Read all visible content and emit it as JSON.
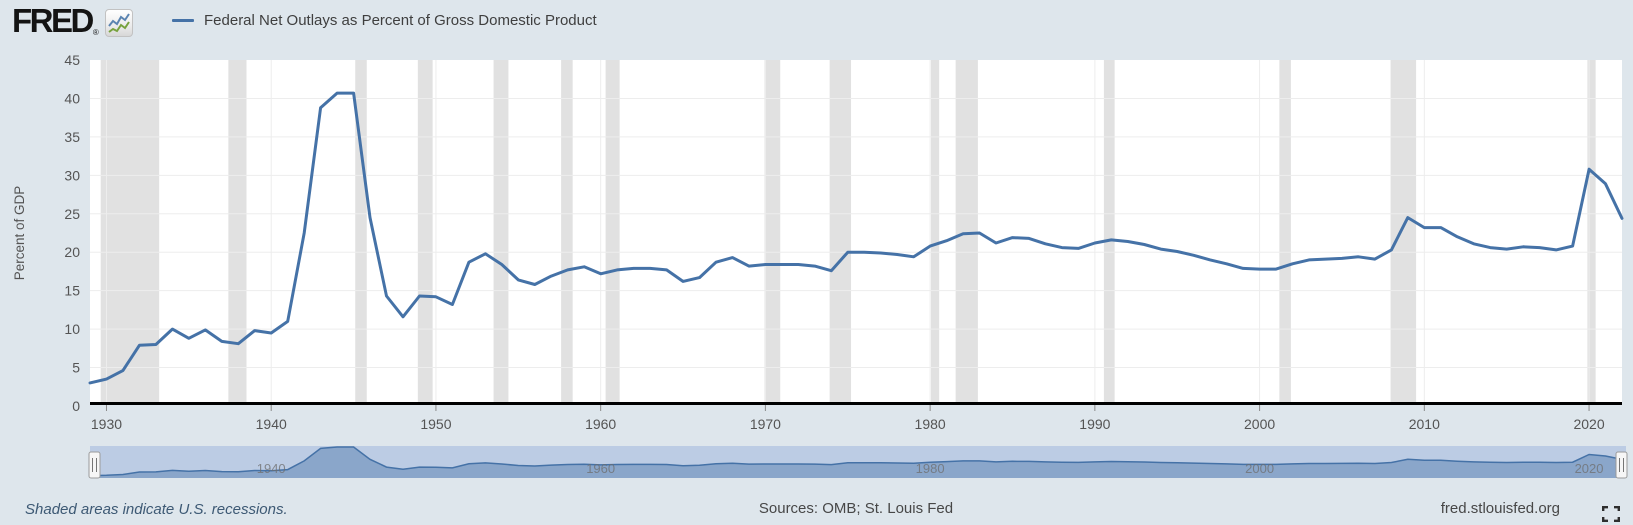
{
  "header": {
    "logo_text": "FRED",
    "registered_mark": "®",
    "legend": {
      "marker_color": "#4572a7",
      "label": "Federal Net Outlays as Percent of Gross Domestic Product"
    }
  },
  "footer": {
    "recession_note": "Shaded areas indicate U.S. recessions.",
    "sources": "Sources: OMB; St. Louis Fed",
    "site_link": "fred.stlouisfed.org"
  },
  "theme": {
    "background": "#dee6ec",
    "plot_background": "#ffffff",
    "gridline_color": "#ededed",
    "axis_line_color": "#000000",
    "tick_label_color": "#545454"
  },
  "chart_data": {
    "type": "line",
    "series_name": "Federal Net Outlays as Percent of Gross Domestic Product",
    "ylabel": "Percent of GDP",
    "ylim": [
      0,
      45
    ],
    "yticks": [
      0,
      5,
      10,
      15,
      20,
      25,
      30,
      35,
      40,
      45
    ],
    "xlim": [
      1929,
      2022
    ],
    "xticks": [
      1930,
      1940,
      1950,
      1960,
      1970,
      1980,
      1990,
      2000,
      2010,
      2020
    ],
    "grid": true,
    "legend_position": "top-left",
    "line_color": "#4572a7",
    "recession_band_color": "#e1e1e1",
    "recessions": [
      [
        1929.65,
        1933.2
      ],
      [
        1937.4,
        1938.5
      ],
      [
        1945.1,
        1945.8
      ],
      [
        1948.9,
        1949.8
      ],
      [
        1953.5,
        1954.4
      ],
      [
        1957.6,
        1958.3
      ],
      [
        1960.3,
        1961.15
      ],
      [
        1969.95,
        1970.9
      ],
      [
        1973.9,
        1975.2
      ],
      [
        1980.05,
        1980.55
      ],
      [
        1981.55,
        1982.9
      ],
      [
        1990.55,
        1991.2
      ],
      [
        2001.2,
        2001.9
      ],
      [
        2007.95,
        2009.5
      ],
      [
        2019.9,
        2020.4
      ]
    ],
    "years": [
      1929,
      1930,
      1931,
      1932,
      1933,
      1934,
      1935,
      1936,
      1937,
      1938,
      1939,
      1940,
      1941,
      1942,
      1943,
      1944,
      1945,
      1946,
      1947,
      1948,
      1949,
      1950,
      1951,
      1952,
      1953,
      1954,
      1955,
      1956,
      1957,
      1958,
      1959,
      1960,
      1961,
      1962,
      1963,
      1964,
      1965,
      1966,
      1967,
      1968,
      1969,
      1970,
      1971,
      1972,
      1973,
      1974,
      1975,
      1976,
      1977,
      1978,
      1979,
      1980,
      1981,
      1982,
      1983,
      1984,
      1985,
      1986,
      1987,
      1988,
      1989,
      1990,
      1991,
      1992,
      1993,
      1994,
      1995,
      1996,
      1997,
      1998,
      1999,
      2000,
      2001,
      2002,
      2003,
      2004,
      2005,
      2006,
      2007,
      2008,
      2009,
      2010,
      2011,
      2012,
      2013,
      2014,
      2015,
      2016,
      2017,
      2018,
      2019,
      2020,
      2021,
      2022
    ],
    "values": [
      3.0,
      3.5,
      4.6,
      7.9,
      8.0,
      10.0,
      8.8,
      9.9,
      8.4,
      8.1,
      9.8,
      9.5,
      11.0,
      22.5,
      38.8,
      40.7,
      40.7,
      24.5,
      14.3,
      11.6,
      14.3,
      14.2,
      13.2,
      18.7,
      19.8,
      18.4,
      16.4,
      15.8,
      16.9,
      17.7,
      18.1,
      17.2,
      17.7,
      17.9,
      17.9,
      17.7,
      16.2,
      16.7,
      18.7,
      19.3,
      18.2,
      18.4,
      18.4,
      18.4,
      18.2,
      17.6,
      20.0,
      20.0,
      19.9,
      19.7,
      19.4,
      20.8,
      21.5,
      22.4,
      22.5,
      21.2,
      21.9,
      21.8,
      21.1,
      20.6,
      20.5,
      21.2,
      21.6,
      21.4,
      21.0,
      20.4,
      20.1,
      19.6,
      19.0,
      18.5,
      17.9,
      17.8,
      17.8,
      18.5,
      19.0,
      19.1,
      19.2,
      19.4,
      19.1,
      20.3,
      24.5,
      23.2,
      23.2,
      22.0,
      21.1,
      20.6,
      20.4,
      20.7,
      20.6,
      20.3,
      20.8,
      30.8,
      28.9,
      24.4
    ],
    "navigator": {
      "labels": [
        "1940",
        "1960",
        "1980",
        "2000",
        "2020"
      ],
      "label_years": [
        1940,
        1960,
        1980,
        2000,
        2020
      ],
      "track_color": "#bccce4",
      "area_fill": "rgba(69,114,167,0.42)",
      "area_line": "#4572a7",
      "label_color": "#6e6e6e"
    }
  }
}
